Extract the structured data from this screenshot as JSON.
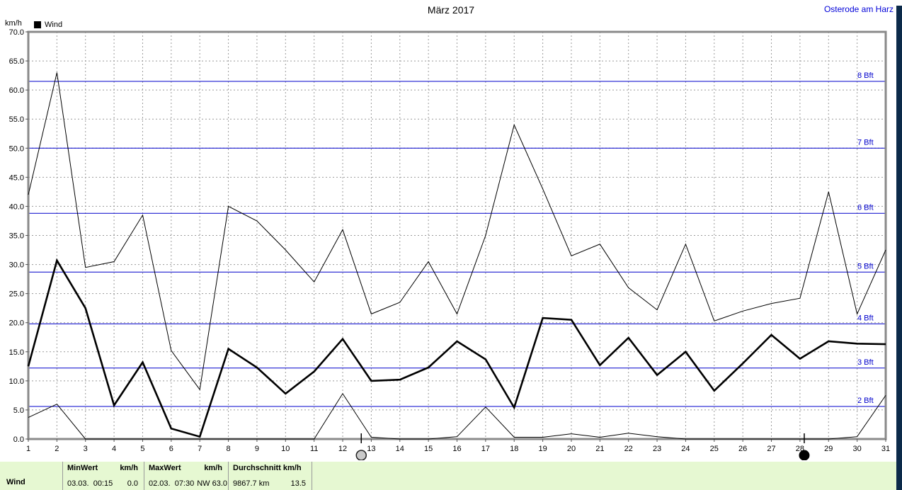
{
  "window": {
    "title": "März 2017",
    "station": "Osterode am Harz"
  },
  "chart_data": {
    "type": "line",
    "title": "März 2017",
    "ylabel": "km/h",
    "legend_label": "Wind",
    "grid": true,
    "ylim": [
      0,
      70
    ],
    "x": [
      1,
      2,
      3,
      4,
      5,
      6,
      7,
      8,
      9,
      10,
      11,
      12,
      13,
      14,
      15,
      16,
      17,
      18,
      19,
      20,
      21,
      22,
      23,
      24,
      25,
      26,
      27,
      28,
      29,
      30,
      31
    ],
    "x_tick_labels": [
      "1",
      "2",
      "3",
      "4",
      "5",
      "6",
      "7",
      "8",
      "9",
      "10",
      "11",
      "12",
      "13",
      "14",
      "15",
      "16",
      "17",
      "18",
      "19",
      "20",
      "21",
      "22",
      "23",
      "24",
      "25",
      "26",
      "27",
      "28",
      "29",
      "30",
      "31"
    ],
    "y_tick_values": [
      0,
      5,
      10,
      15,
      20,
      25,
      30,
      35,
      40,
      45,
      50,
      55,
      60,
      65,
      70
    ],
    "y_tick_labels": [
      "0.0",
      "5.0",
      "10.0",
      "15.0",
      "20.0",
      "25.0",
      "30.0",
      "35.0",
      "40.0",
      "45.0",
      "50.0",
      "55.0",
      "60.0",
      "65.0",
      "70.0"
    ],
    "series": [
      {
        "key": "wind-max",
        "style": "thin",
        "values": [
          42,
          63,
          29.5,
          30.5,
          38.5,
          15.2,
          8.5,
          40,
          37.5,
          32.5,
          27,
          36,
          21.5,
          23.5,
          30.5,
          21.5,
          35,
          54,
          43,
          31.5,
          33.5,
          26,
          22.2,
          33.5,
          20.3,
          22,
          23.3,
          24.2,
          42.5,
          21.5,
          32.5
        ]
      },
      {
        "key": "wind-mean",
        "style": "thick",
        "values": [
          12.5,
          30.7,
          22.5,
          5.8,
          13.2,
          1.8,
          0.4,
          15.5,
          12.3,
          7.8,
          11.6,
          17.2,
          10,
          10.2,
          12.3,
          16.8,
          13.7,
          5.4,
          20.8,
          20.5,
          12.7,
          17.4,
          11,
          15,
          8.3,
          13,
          17.9,
          13.8,
          16.8,
          16.4,
          16.3
        ]
      },
      {
        "key": "wind-min",
        "style": "thin",
        "values": [
          3.7,
          6,
          0,
          0,
          0,
          0,
          0,
          0,
          0,
          0,
          0,
          7.8,
          0.3,
          0,
          0,
          0.4,
          5.5,
          0.3,
          0.3,
          0.9,
          0.3,
          1,
          0.4,
          0,
          0,
          0,
          0,
          0,
          0,
          0.4,
          7.5
        ]
      }
    ],
    "beaufort_lines": [
      {
        "label": "2 Bft",
        "value": 5.6
      },
      {
        "label": "3 Bft",
        "value": 12.2
      },
      {
        "label": "4 Bft",
        "value": 19.8
      },
      {
        "label": "5 Bft",
        "value": 28.7
      },
      {
        "label": "6 Bft",
        "value": 38.8
      },
      {
        "label": "7 Bft",
        "value": 50.0
      },
      {
        "label": "8 Bft",
        "value": 61.5
      }
    ],
    "moon_markers": [
      {
        "type": "full-moon",
        "day": 12.65
      },
      {
        "type": "new-moon",
        "day": 28.15
      }
    ]
  },
  "statusbar": {
    "row_label": "Wind",
    "min": {
      "header": "MinWert",
      "unit": "km/h",
      "datetime": "03.03.  00:15",
      "value": "0.0"
    },
    "max": {
      "header": "MaxWert",
      "unit": "km/h",
      "datetime": "02.03.  07:30",
      "value": "NW 63.0"
    },
    "avg": {
      "header": "Durchschnitt km/h",
      "datetime": "9867.7 km",
      "value": "13.5"
    }
  },
  "colors": {
    "beaufort_line": "#0000cc",
    "station_text": "#0000d8",
    "statusbar_bg": "#e6f8d2",
    "series_color": "#000000",
    "right_edge_strip": "#0c2a4a"
  }
}
